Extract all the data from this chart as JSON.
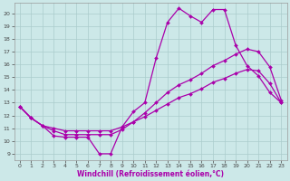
{
  "background_color": "#cce8e8",
  "grid_color": "#aacccc",
  "line_color": "#aa00aa",
  "marker": "D",
  "markersize": 2.0,
  "linewidth": 0.9,
  "xlabel": "Windchill (Refroidissement éolien,°C)",
  "xlim": [
    -0.5,
    23.5
  ],
  "ylim": [
    8.5,
    20.8
  ],
  "xticks": [
    0,
    1,
    2,
    3,
    4,
    5,
    6,
    7,
    8,
    9,
    10,
    11,
    12,
    13,
    14,
    15,
    16,
    17,
    18,
    19,
    20,
    21,
    22,
    23
  ],
  "yticks": [
    9,
    10,
    11,
    12,
    13,
    14,
    15,
    16,
    17,
    18,
    19,
    20
  ],
  "line1_x": [
    0,
    1,
    2,
    3,
    4,
    5,
    6,
    7,
    8,
    9,
    10,
    11,
    12,
    13,
    14,
    15,
    16,
    17,
    18,
    19,
    20,
    21,
    22,
    23
  ],
  "line1_y": [
    12.7,
    11.8,
    11.2,
    10.4,
    10.3,
    10.3,
    10.3,
    9.0,
    9.0,
    11.1,
    12.3,
    13.0,
    16.5,
    19.3,
    20.4,
    19.8,
    19.3,
    20.3,
    20.3,
    17.5,
    15.9,
    15.1,
    13.8,
    13.0
  ],
  "line2_x": [
    0,
    1,
    2,
    3,
    4,
    5,
    6,
    7,
    8,
    9,
    10,
    11,
    12,
    13,
    14,
    15,
    16,
    17,
    18,
    19,
    20,
    21,
    22,
    23
  ],
  "line2_y": [
    12.7,
    11.8,
    11.2,
    10.8,
    10.5,
    10.5,
    10.5,
    10.5,
    10.5,
    10.9,
    11.5,
    12.2,
    13.0,
    13.8,
    14.4,
    14.8,
    15.3,
    15.9,
    16.3,
    16.8,
    17.2,
    17.0,
    15.8,
    13.2
  ],
  "line3_x": [
    0,
    1,
    2,
    3,
    4,
    5,
    6,
    7,
    8,
    9,
    10,
    11,
    12,
    13,
    14,
    15,
    16,
    17,
    18,
    19,
    20,
    21,
    22,
    23
  ],
  "line3_y": [
    12.7,
    11.8,
    11.2,
    11.0,
    10.8,
    10.8,
    10.8,
    10.8,
    10.8,
    11.1,
    11.5,
    11.9,
    12.4,
    12.9,
    13.4,
    13.7,
    14.1,
    14.6,
    14.9,
    15.3,
    15.6,
    15.5,
    14.5,
    13.0
  ],
  "xlabel_fontsize": 5.5,
  "tick_fontsize": 4.5
}
